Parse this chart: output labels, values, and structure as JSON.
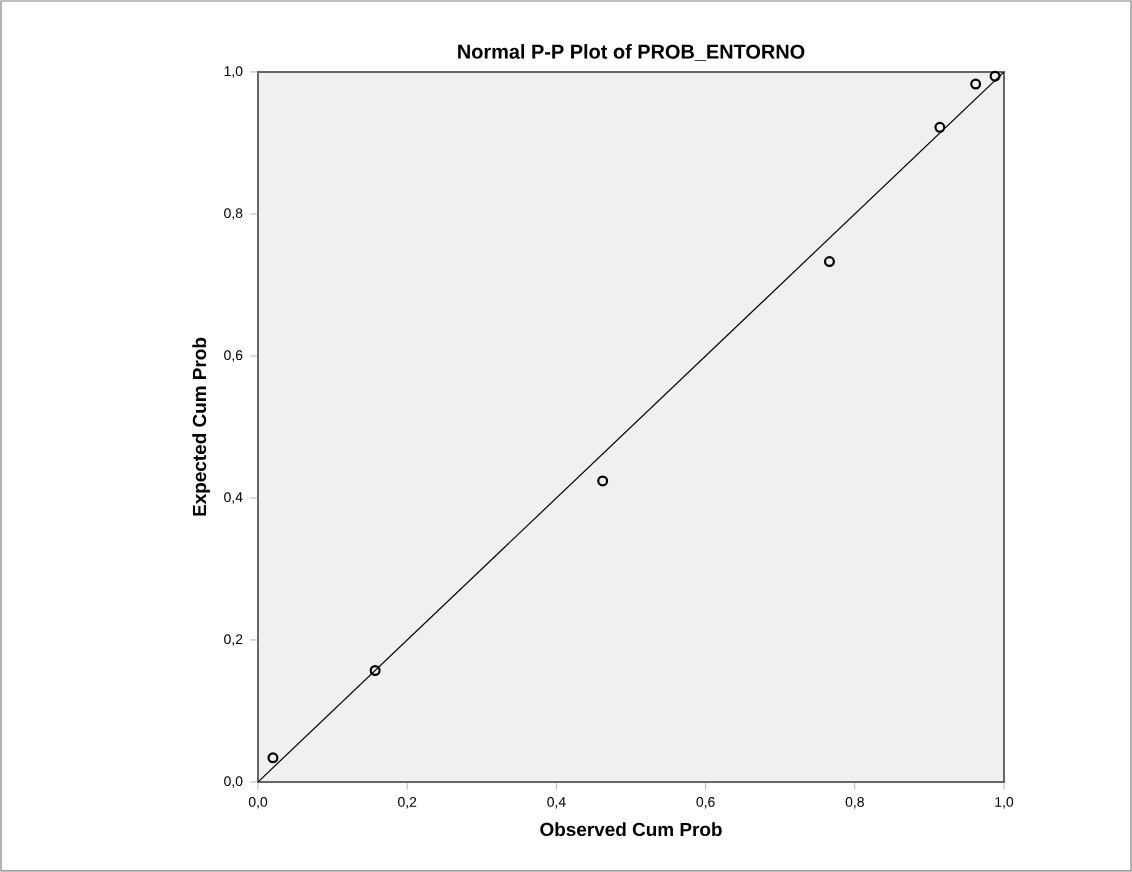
{
  "chart_data": {
    "type": "scatter",
    "title": "Normal P-P Plot of PROB_ENTORNO",
    "xlabel": "Observed Cum Prob",
    "ylabel": "Expected Cum Prob",
    "xlim": [
      0,
      1
    ],
    "ylim": [
      0,
      1
    ],
    "xticks": [
      {
        "value": 0,
        "label": "0,0"
      },
      {
        "value": 0.2,
        "label": "0,2"
      },
      {
        "value": 0.4,
        "label": "0,4"
      },
      {
        "value": 0.6,
        "label": "0,6"
      },
      {
        "value": 0.8,
        "label": "0,8"
      },
      {
        "value": 1,
        "label": "1,0"
      }
    ],
    "yticks": [
      {
        "value": 0,
        "label": "0,0"
      },
      {
        "value": 0.2,
        "label": "0,2"
      },
      {
        "value": 0.4,
        "label": "0,4"
      },
      {
        "value": 0.6,
        "label": "0,6"
      },
      {
        "value": 0.8,
        "label": "0,8"
      },
      {
        "value": 1,
        "label": "1,0"
      }
    ],
    "grid": false,
    "series": [
      {
        "marker": "circle",
        "color": "#000000",
        "x": [
          0.02,
          0.157,
          0.462,
          0.766,
          0.914,
          0.962,
          0.988
        ],
        "values": [
          0.034,
          0.157,
          0.424,
          0.733,
          0.922,
          0.983,
          0.994
        ]
      },
      {
        "type": "line",
        "marker": "none",
        "line_style": "solid",
        "color": "#000000",
        "x": [
          0,
          1
        ],
        "values": [
          0,
          1
        ]
      }
    ]
  }
}
